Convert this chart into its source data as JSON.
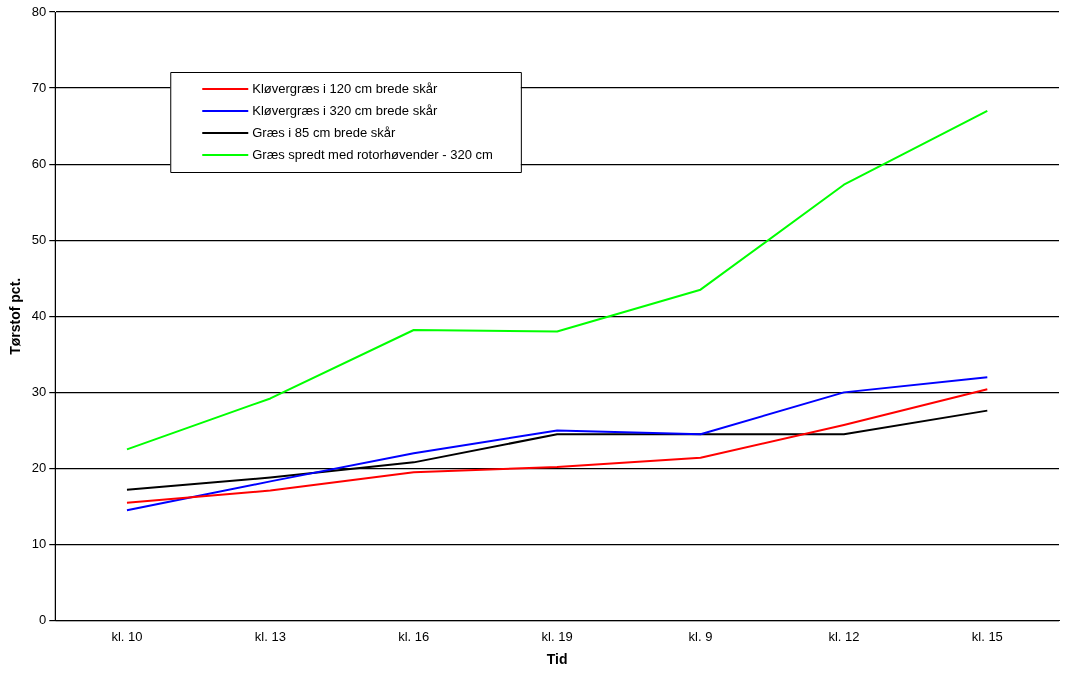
{
  "chart_data": {
    "type": "line",
    "xlabel": "Tid",
    "ylabel": "Tørstof pct.",
    "categories": [
      "kl. 10",
      "kl. 13",
      "kl. 16",
      "kl. 19",
      "kl. 9",
      "kl. 12",
      "kl. 15"
    ],
    "series": [
      {
        "name": "Kløvergræs i 120 cm brede skår",
        "color": "#ff0000",
        "values": [
          15.5,
          17.1,
          19.5,
          20.2,
          21.4,
          25.7,
          30.4
        ]
      },
      {
        "name": "Kløvergræs i 320 cm brede skår",
        "color": "#0000ff",
        "values": [
          14.5,
          18.3,
          22,
          25,
          24.5,
          30,
          32
        ]
      },
      {
        "name": "Græs i 85 cm brede skår",
        "color": "#000000",
        "values": [
          17.2,
          18.8,
          20.8,
          24.5,
          24.5,
          24.5,
          27.6
        ]
      },
      {
        "name": "Græs spredt med rotorhøvender - 320 cm",
        "color": "#00ff00",
        "values": [
          22.5,
          29.2,
          38.2,
          38,
          43.5,
          57.3,
          67
        ]
      }
    ],
    "ylim": [
      0,
      80
    ],
    "yticks": [
      0,
      10,
      20,
      30,
      40,
      50,
      60,
      70,
      80
    ],
    "grid": "y",
    "legend": "top left",
    "marker": "none",
    "line_style": "solid"
  }
}
